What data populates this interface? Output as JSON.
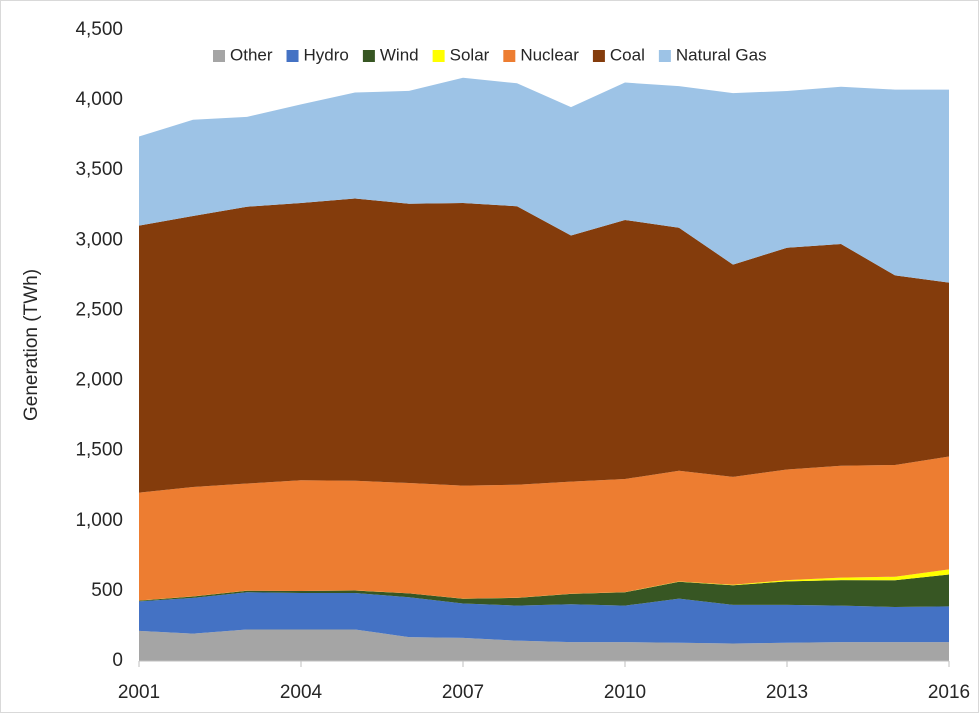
{
  "chart_data": {
    "type": "stacked_area",
    "y_label": "Generation (TWh)",
    "x": [
      2001,
      2002,
      2003,
      2004,
      2005,
      2006,
      2007,
      2008,
      2009,
      2010,
      2011,
      2012,
      2013,
      2014,
      2015,
      2016
    ],
    "xlim": [
      2001,
      2016
    ],
    "xticks": [
      2001,
      2004,
      2007,
      2010,
      2013,
      2016
    ],
    "ylim": [
      0,
      4500
    ],
    "yticks": [
      0,
      500,
      {
        "value": 1000,
        "label": "1,000"
      },
      {
        "value": 1500,
        "label": "1,500"
      },
      {
        "value": 2000,
        "label": "2,000"
      },
      {
        "value": 2500,
        "label": "2,500"
      },
      {
        "value": 3000,
        "label": "3,000"
      },
      {
        "value": 3500,
        "label": "3,500"
      },
      {
        "value": 4000,
        "label": "4,000"
      },
      {
        "value": 4500,
        "label": "4,500"
      }
    ],
    "grid": false,
    "legend": "top",
    "series": [
      {
        "name": "Other",
        "color": "#a5a5a5",
        "values": [
          215,
          195,
          225,
          225,
          225,
          170,
          165,
          145,
          135,
          135,
          130,
          125,
          130,
          135,
          135,
          135
        ]
      },
      {
        "name": "Hydro",
        "color": "#4472c4",
        "values": [
          210,
          255,
          265,
          260,
          260,
          285,
          245,
          250,
          270,
          260,
          315,
          275,
          270,
          260,
          250,
          255
        ]
      },
      {
        "name": "Wind",
        "color": "#375623",
        "values": [
          6,
          10,
          11,
          14,
          18,
          27,
          34,
          55,
          74,
          95,
          120,
          140,
          168,
          182,
          191,
          227
        ]
      },
      {
        "name": "Solar",
        "color": "#ffff00",
        "values": [
          0.5,
          0.6,
          0.5,
          0.6,
          0.6,
          0.5,
          0.6,
          0.9,
          0.9,
          1.2,
          1.8,
          4,
          9,
          18,
          25,
          36
        ]
      },
      {
        "name": "Nuclear",
        "color": "#ed7d31",
        "values": [
          769,
          780,
          764,
          789,
          782,
          787,
          806,
          806,
          799,
          807,
          790,
          769,
          789,
          797,
          797,
          805
        ]
      },
      {
        "name": "Coal",
        "color": "#843c0c",
        "values": [
          1904,
          1933,
          1974,
          1978,
          2013,
          1991,
          2016,
          1986,
          1756,
          1847,
          1733,
          1514,
          1581,
          1582,
          1352,
          1240
        ]
      },
      {
        "name": "Natural Gas",
        "color": "#9dc3e6",
        "values": [
          636,
          686,
          641,
          703,
          756,
          805,
          893,
          877,
          915,
          980,
          1010,
          1223,
          1118,
          1121,
          1325,
          1377
        ]
      }
    ]
  }
}
